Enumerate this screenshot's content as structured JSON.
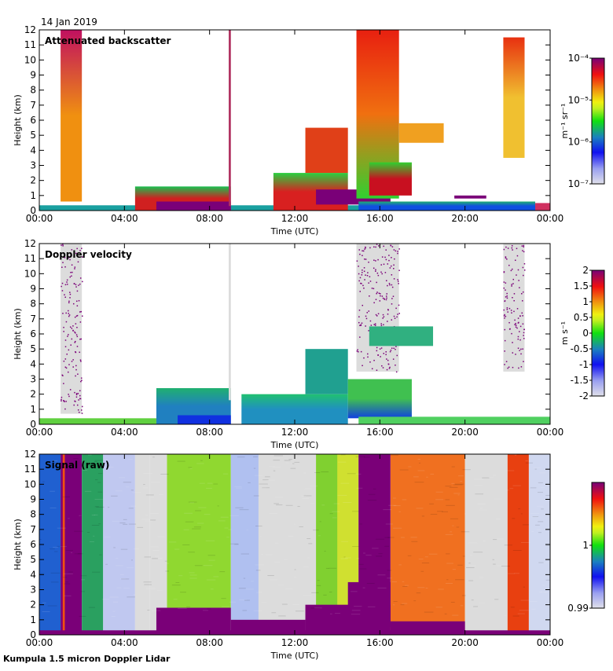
{
  "header": {
    "date": "14 Jan 2019"
  },
  "footer": {
    "instrument": "Kumpula 1.5 micron Doppler Lidar"
  },
  "chart_data": [
    {
      "type": "heatmap",
      "title": "Attenuated backscatter",
      "xlabel": "Time (UTC)",
      "ylabel": "Height (km)",
      "xlim": [
        0,
        24
      ],
      "ylim": [
        0,
        12
      ],
      "xticks": [
        "00:00",
        "04:00",
        "08:00",
        "12:00",
        "16:00",
        "20:00",
        "00:00"
      ],
      "yticks": [
        "0",
        "1",
        "2",
        "3",
        "4",
        "5",
        "6",
        "7",
        "8",
        "9",
        "10",
        "11",
        "12"
      ],
      "colorbar": {
        "label": "m⁻¹ sr⁻¹",
        "scale": "log",
        "range": [
          1e-07,
          0.0001
        ],
        "ticks": [
          "10⁻⁷",
          "10⁻⁶",
          "10⁻⁵",
          "10⁻⁴"
        ],
        "tick_pos": [
          0,
          0.333,
          0.667,
          1
        ]
      },
      "regions": [
        {
          "x": [
            1.0,
            2.0
          ],
          "y": [
            0.6,
            12
          ],
          "c": "#f09010",
          "top": "#c01060"
        },
        {
          "x": [
            0,
            24
          ],
          "y": [
            0,
            0.35
          ],
          "c": "#1aa0a0"
        },
        {
          "x": [
            4.5,
            9.0
          ],
          "y": [
            0,
            1.6
          ],
          "c": "#d02020",
          "top": "#18c050"
        },
        {
          "x": [
            5.5,
            9.0
          ],
          "y": [
            0,
            0.6
          ],
          "c": "#7a0078"
        },
        {
          "x": [
            8.9,
            9.0
          ],
          "y": [
            0.3,
            12
          ],
          "c": "#b03060"
        },
        {
          "x": [
            11.0,
            14.5
          ],
          "y": [
            0,
            2.5
          ],
          "c": "#d82020",
          "top": "#28d040"
        },
        {
          "x": [
            12.5,
            14.5
          ],
          "y": [
            2.5,
            5.5
          ],
          "c": "#e04018"
        },
        {
          "x": [
            13.0,
            16.5
          ],
          "y": [
            0.4,
            1.4
          ],
          "c": "#7a0078"
        },
        {
          "x": [
            14.9,
            16.9
          ],
          "y": [
            0.8,
            12
          ],
          "c": "#f07010",
          "top": "#e82010",
          "bottom": "#30d030"
        },
        {
          "x": [
            15.5,
            17.5
          ],
          "y": [
            1.0,
            3.2
          ],
          "c": "#c81020",
          "top": "#30d030"
        },
        {
          "x": [
            15.0,
            23.3
          ],
          "y": [
            0,
            0.6
          ],
          "c": "#1050e0",
          "top": "#20b070"
        },
        {
          "x": [
            19.5,
            21.0
          ],
          "y": [
            0.8,
            1.0
          ],
          "c": "#7a0078"
        },
        {
          "x": [
            16.9,
            19.0
          ],
          "y": [
            4.5,
            5.8
          ],
          "c": "#f0a020"
        },
        {
          "x": [
            21.8,
            22.8
          ],
          "y": [
            3.5,
            11.5
          ],
          "c": "#f0c030",
          "top": "#e83010"
        },
        {
          "x": [
            23.3,
            24
          ],
          "y": [
            0,
            0.5
          ],
          "c": "#d03060"
        }
      ]
    },
    {
      "type": "heatmap",
      "title": "Doppler velocity",
      "xlabel": "Time (UTC)",
      "ylabel": "Height (km)",
      "xlim": [
        0,
        24
      ],
      "ylim": [
        0,
        12
      ],
      "xticks": [
        "00:00",
        "04:00",
        "08:00",
        "12:00",
        "16:00",
        "20:00",
        "00:00"
      ],
      "yticks": [
        "0",
        "1",
        "2",
        "3",
        "4",
        "5",
        "6",
        "7",
        "8",
        "9",
        "10",
        "11",
        "12"
      ],
      "colorbar": {
        "label": "m s⁻¹",
        "scale": "linear",
        "range": [
          -2,
          2
        ],
        "ticks": [
          "-2",
          "-1.5",
          "-1",
          "-0.5",
          "0",
          "0.5",
          "1",
          "1.5",
          "2"
        ],
        "tick_pos": [
          0,
          0.125,
          0.25,
          0.375,
          0.5,
          0.625,
          0.75,
          0.875,
          1
        ]
      },
      "regions": [
        {
          "x": [
            1.0,
            2.0
          ],
          "y": [
            0.7,
            12
          ],
          "c": "#dcdcdc",
          "speck": "#7a0078"
        },
        {
          "x": [
            0,
            5.5
          ],
          "y": [
            0,
            0.4
          ],
          "c": "#60d040"
        },
        {
          "x": [
            5.5,
            9.0
          ],
          "y": [
            0,
            2.4
          ],
          "c": "#2080c0",
          "top": "#20b070"
        },
        {
          "x": [
            6.5,
            9.0
          ],
          "y": [
            0,
            0.6
          ],
          "c": "#1030e0"
        },
        {
          "x": [
            8.9,
            9.0
          ],
          "y": [
            1.6,
            12
          ],
          "c": "#dcdcdc"
        },
        {
          "x": [
            9.5,
            14.5
          ],
          "y": [
            0,
            2.0
          ],
          "c": "#2090c0",
          "top": "#20c070"
        },
        {
          "x": [
            12.5,
            14.5
          ],
          "y": [
            2.0,
            5.0
          ],
          "c": "#20a090"
        },
        {
          "x": [
            14.9,
            16.9
          ],
          "y": [
            3.5,
            12
          ],
          "c": "#dcdcdc",
          "speck": "#7a0078"
        },
        {
          "x": [
            14.5,
            17.5
          ],
          "y": [
            0.4,
            3.0
          ],
          "c": "#40c050",
          "bottom": "#1040e0"
        },
        {
          "x": [
            15.5,
            18.5
          ],
          "y": [
            5.2,
            6.5
          ],
          "c": "#30b080"
        },
        {
          "x": [
            15.0,
            24
          ],
          "y": [
            0,
            0.5
          ],
          "c": "#50d060"
        },
        {
          "x": [
            21.8,
            22.8
          ],
          "y": [
            3.5,
            12
          ],
          "c": "#dcdcdc",
          "speck": "#7a0078"
        }
      ]
    },
    {
      "type": "heatmap",
      "title": "Signal (raw)",
      "xlabel": "Time (UTC)",
      "ylabel": "Height (km)",
      "xlim": [
        0,
        24
      ],
      "ylim": [
        0,
        12
      ],
      "xticks": [
        "00:00",
        "04:00",
        "08:00",
        "12:00",
        "16:00",
        "20:00",
        "00:00"
      ],
      "yticks": [
        "0",
        "1",
        "2",
        "3",
        "4",
        "5",
        "6",
        "7",
        "8",
        "9",
        "10",
        "11",
        "12"
      ],
      "colorbar": {
        "label": "",
        "scale": "linear",
        "range": [
          0.99,
          1.01
        ],
        "ticks": [
          "0.99",
          "1"
        ],
        "tick_pos": [
          0,
          0.5
        ]
      },
      "regions": [
        {
          "x": [
            0,
            1.0
          ],
          "y": [
            0,
            12
          ],
          "c": "#2060d0"
        },
        {
          "x": [
            1.0,
            2.0
          ],
          "y": [
            0,
            12
          ],
          "c": "#7a0078"
        },
        {
          "x": [
            1.1,
            1.2
          ],
          "y": [
            0,
            12
          ],
          "c": "#f05010"
        },
        {
          "x": [
            2.0,
            3.0
          ],
          "y": [
            0,
            12
          ],
          "c": "#2aa060"
        },
        {
          "x": [
            3.0,
            4.5
          ],
          "y": [
            0,
            12
          ],
          "c": "#c0c8f0"
        },
        {
          "x": [
            4.5,
            5.2
          ],
          "y": [
            0,
            12
          ],
          "c": "#dcdcdc"
        },
        {
          "x": [
            5.2,
            6.0
          ],
          "y": [
            0,
            12
          ],
          "c": "#dcdcdc"
        },
        {
          "x": [
            6.0,
            9.0
          ],
          "y": [
            0,
            12
          ],
          "c": "#90d830"
        },
        {
          "x": [
            9.0,
            10.3
          ],
          "y": [
            0,
            12
          ],
          "c": "#b0c0f0"
        },
        {
          "x": [
            10.3,
            12.0
          ],
          "y": [
            0,
            12
          ],
          "c": "#dcdcdc"
        },
        {
          "x": [
            12.0,
            13.0
          ],
          "y": [
            0,
            12
          ],
          "c": "#dcdcdc"
        },
        {
          "x": [
            13.0,
            15.0
          ],
          "y": [
            0,
            12
          ],
          "c": "#80d030"
        },
        {
          "x": [
            14.0,
            15.0
          ],
          "y": [
            0,
            12
          ],
          "c": "#d0e030"
        },
        {
          "x": [
            15.0,
            16.5
          ],
          "y": [
            0,
            12
          ],
          "c": "#7a0078",
          "bottom": "#7a0078"
        },
        {
          "x": [
            16.5,
            20.0
          ],
          "y": [
            0,
            12
          ],
          "c": "#f07020"
        },
        {
          "x": [
            20.0,
            22.0
          ],
          "y": [
            0,
            12
          ],
          "c": "#dcdcdc"
        },
        {
          "x": [
            22.0,
            23.0
          ],
          "y": [
            0,
            12
          ],
          "c": "#e84010"
        },
        {
          "x": [
            23.0,
            24.0
          ],
          "y": [
            0,
            12
          ],
          "c": "#d0d8f0"
        },
        {
          "x": [
            0,
            24
          ],
          "y": [
            0,
            0.3
          ],
          "c": "#7a0078"
        },
        {
          "x": [
            5.5,
            9.0
          ],
          "y": [
            0,
            1.8
          ],
          "c": "#7a0078"
        },
        {
          "x": [
            9.0,
            12.5
          ],
          "y": [
            0,
            1.0
          ],
          "c": "#7a0078"
        },
        {
          "x": [
            12.5,
            16.5
          ],
          "y": [
            0,
            2.0
          ],
          "c": "#7a0078"
        },
        {
          "x": [
            14.5,
            16.5
          ],
          "y": [
            0.5,
            3.5
          ],
          "c": "#7a0078"
        },
        {
          "x": [
            16.5,
            20.0
          ],
          "y": [
            0,
            0.9
          ],
          "c": "#7a0078"
        }
      ]
    }
  ]
}
